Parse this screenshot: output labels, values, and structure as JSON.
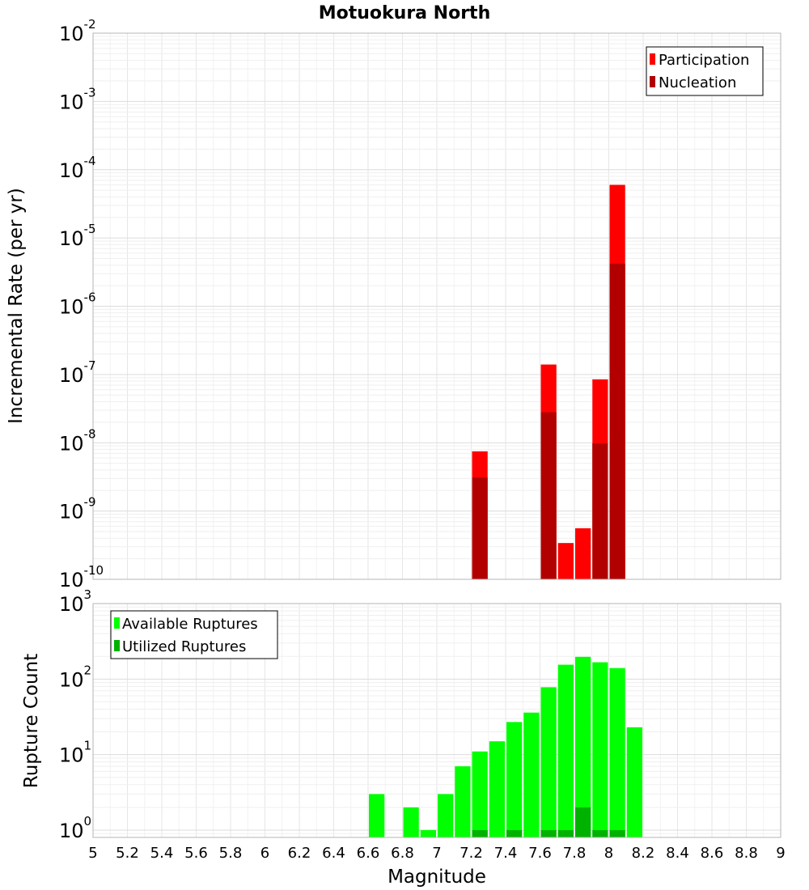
{
  "chart_data": [
    {
      "type": "bar",
      "title": "Motuokura North",
      "xlabel": "Magnitude",
      "ylabel": "Incremental Rate (per yr)",
      "xlim": [
        5,
        9
      ],
      "ylim": [
        1e-10,
        0.01
      ],
      "yscale": "log",
      "grid": true,
      "legend_placement": "top-right",
      "y_tick_labels": [
        {
          "base": "10",
          "exp": "-10"
        },
        {
          "base": "10",
          "exp": "-9"
        },
        {
          "base": "10",
          "exp": "-8"
        },
        {
          "base": "10",
          "exp": "-7"
        },
        {
          "base": "10",
          "exp": "-6"
        },
        {
          "base": "10",
          "exp": "-5"
        },
        {
          "base": "10",
          "exp": "-4"
        },
        {
          "base": "10",
          "exp": "-3"
        },
        {
          "base": "10",
          "exp": "-2"
        }
      ],
      "series": [
        {
          "name": "Participation",
          "color": "#ff0000",
          "x": [
            7.25,
            7.65,
            7.75,
            7.85,
            7.95,
            8.05
          ],
          "values": [
            7.5e-09,
            1.4e-07,
            3.4e-10,
            5.6e-10,
            8.5e-08,
            6e-05
          ]
        },
        {
          "name": "Nucleation",
          "color": "#b20000",
          "x": [
            7.25,
            7.65,
            7.95,
            8.05
          ],
          "values": [
            3.1e-09,
            2.8e-08,
            9.8e-09,
            4.2e-06
          ]
        }
      ]
    },
    {
      "type": "bar",
      "xlabel": "Magnitude",
      "ylabel": "Rupture Count",
      "xlim": [
        5,
        9
      ],
      "ylim": [
        0.8,
        1000
      ],
      "yscale": "log",
      "grid": true,
      "legend_placement": "top-left",
      "x_tick_labels": [
        "5",
        "5.2",
        "5.4",
        "5.6",
        "5.8",
        "6",
        "6.2",
        "6.4",
        "6.6",
        "6.8",
        "7",
        "7.2",
        "7.4",
        "7.6",
        "7.8",
        "8",
        "8.2",
        "8.4",
        "8.6",
        "8.8",
        "9"
      ],
      "y_tick_labels": [
        {
          "base": "10",
          "exp": "0"
        },
        {
          "base": "10",
          "exp": "1"
        },
        {
          "base": "10",
          "exp": "2"
        },
        {
          "base": "10",
          "exp": "3"
        }
      ],
      "series": [
        {
          "name": "Available Ruptures",
          "color": "#00ff00",
          "x": [
            6.65,
            6.85,
            6.95,
            7.05,
            7.15,
            7.25,
            7.35,
            7.45,
            7.55,
            7.65,
            7.75,
            7.85,
            7.95,
            8.05,
            8.15
          ],
          "values": [
            3,
            2,
            1,
            3,
            7,
            11,
            15,
            27,
            36,
            78,
            155,
            197,
            167,
            140,
            23
          ]
        },
        {
          "name": "Utilized Ruptures",
          "color": "#00b200",
          "x": [
            7.25,
            7.45,
            7.65,
            7.75,
            7.85,
            7.95,
            8.05
          ],
          "values": [
            1,
            1,
            1,
            1,
            2,
            1,
            1
          ]
        }
      ]
    }
  ]
}
